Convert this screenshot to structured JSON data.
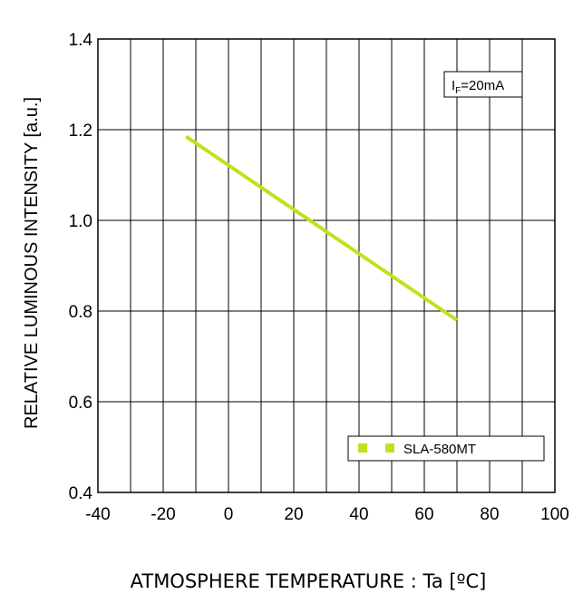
{
  "chart_data": {
    "type": "line",
    "xlabel": "ATMOSPHERE TEMPERATURE : Ta [ºC]",
    "ylabel": "RELATIVE LUMINOUS INTENSITY [a.u.]",
    "xlim": [
      -40,
      100
    ],
    "ylim": [
      0.4,
      1.4
    ],
    "x_ticks": [
      "-40",
      "-20",
      "0",
      "20",
      "40",
      "60",
      "80",
      "100"
    ],
    "y_ticks": [
      "0.4",
      "0.6",
      "0.8",
      "1.0",
      "1.2",
      "1.4"
    ],
    "x_grid_step": 10,
    "y_grid_step": 0.2,
    "grid": true,
    "condition": {
      "prefix": "I",
      "subscript": "F",
      "value": "=20mA"
    },
    "legend_position": "bottom-right",
    "series": [
      {
        "name": "SLA-580MT",
        "color": "#c6df1d",
        "x": [
          -13,
          70
        ],
        "y": [
          1.185,
          0.78
        ]
      }
    ]
  }
}
